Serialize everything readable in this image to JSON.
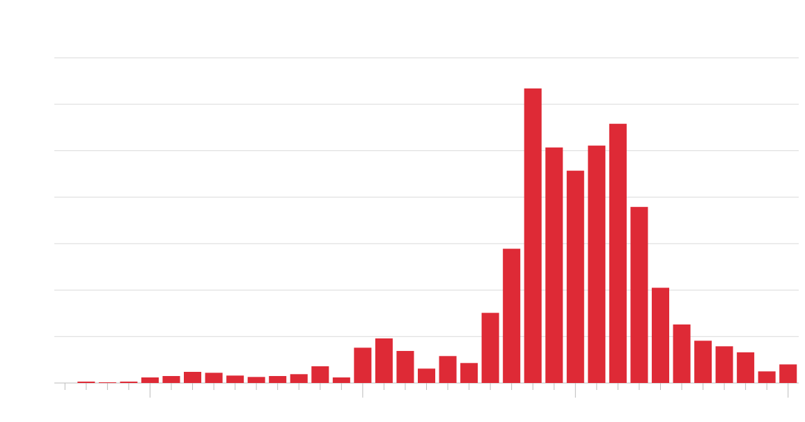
{
  "chart_data": {
    "type": "bar",
    "categories": [
      null,
      null,
      null,
      null,
      null,
      null,
      null,
      null,
      null,
      null,
      null,
      null,
      null,
      null,
      null,
      null,
      null,
      null,
      null,
      null,
      null,
      null,
      null,
      null,
      null,
      null,
      null,
      null,
      null,
      null,
      null,
      null,
      null,
      null,
      null
    ],
    "values": [
      0,
      0.03,
      0.015,
      0.03,
      0.12,
      0.15,
      0.24,
      0.22,
      0.16,
      0.13,
      0.15,
      0.19,
      0.36,
      0.12,
      0.76,
      0.96,
      0.69,
      0.31,
      0.58,
      0.43,
      1.51,
      2.89,
      6.34,
      5.07,
      4.57,
      5.11,
      5.58,
      3.79,
      2.05,
      1.26,
      0.91,
      0.79,
      0.66,
      0.25,
      0.4
    ],
    "color": "#de2a36",
    "ylim": [
      0,
      7
    ],
    "yticks": [
      0,
      1,
      2,
      3,
      4,
      5,
      6,
      7
    ],
    "grid": true
  }
}
